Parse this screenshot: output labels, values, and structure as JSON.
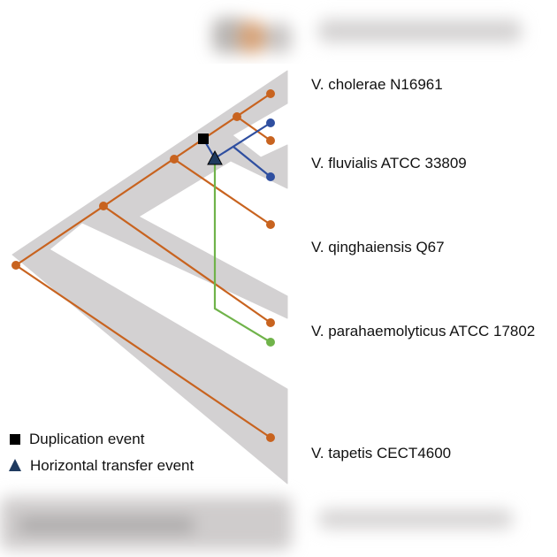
{
  "species": [
    "V. cholerae N16961",
    "V. fluvialis ATCC 33809",
    "V. qinghaiensis Q67",
    "V. parahaemolyticus ATCC 17802",
    "V. tapetis CECT4600"
  ],
  "legend": {
    "duplication": "Duplication event",
    "horizontal_transfer": "Horizontal transfer event"
  },
  "colors": {
    "species_tree": "#d3d1d2",
    "gene_tree": "#c8631f",
    "duplicate_lineage": "#2f4fa0",
    "transfer_lineage": "#70b34a",
    "duplication_marker": "#000000",
    "transfer_marker": "#1f3a5f"
  }
}
